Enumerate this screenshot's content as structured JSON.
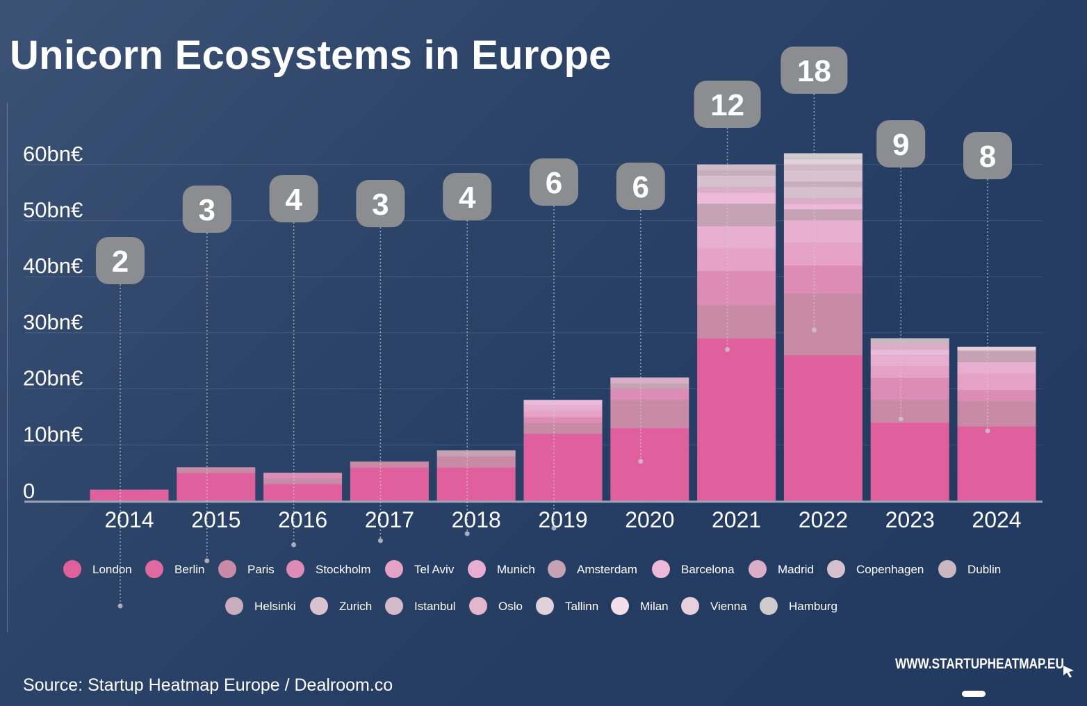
{
  "title": "Unicorn Ecosystems in Europe",
  "source": "Source: Startup Heatmap Europe / Dealroom.co",
  "brand": "WWW.STARTUPHEATMAP.EU",
  "chart_data": {
    "type": "bar",
    "stacked": true,
    "title": "Unicorn Ecosystems in Europe",
    "categories": [
      "2014",
      "2015",
      "2016",
      "2017",
      "2018",
      "2019",
      "2020",
      "2021",
      "2022",
      "2023",
      "2024"
    ],
    "ylim": [
      0,
      60
    ],
    "y_ticks": [
      {
        "value": 0,
        "label": "0"
      },
      {
        "value": 10,
        "label": "10bn€"
      },
      {
        "value": 20,
        "label": "20bn€"
      },
      {
        "value": 30,
        "label": "30bn€"
      },
      {
        "value": 40,
        "label": "40bn€"
      },
      {
        "value": 50,
        "label": "50bn€"
      },
      {
        "value": 60,
        "label": "60bn€"
      }
    ],
    "grid": true,
    "legend_position": "bottom",
    "annotations": [
      2,
      3,
      4,
      3,
      4,
      6,
      6,
      12,
      18,
      9,
      8
    ],
    "totals": [
      2,
      6,
      5,
      7,
      9,
      18,
      22,
      60,
      62,
      29,
      28
    ],
    "series": [
      {
        "name": "London",
        "color": "#e0609e",
        "values": [
          2,
          5,
          3,
          6,
          6,
          12,
          13,
          29,
          26,
          14,
          13.3
        ]
      },
      {
        "name": "Berlin",
        "color": "#df6a9f",
        "values": [
          0,
          0,
          0,
          0,
          0,
          0,
          0,
          0,
          0,
          0,
          0
        ]
      },
      {
        "name": "Paris",
        "color": "#c98aa6",
        "values": [
          0,
          1,
          1,
          1,
          2,
          2,
          5,
          6,
          11,
          4,
          4.5
        ]
      },
      {
        "name": "Stockholm",
        "color": "#dd8cb6",
        "values": [
          0,
          0,
          1,
          0,
          0,
          1,
          2,
          6,
          5,
          4,
          2
        ]
      },
      {
        "name": "Tel Aviv",
        "color": "#e6a2c5",
        "values": [
          0,
          0,
          0,
          0,
          0,
          1,
          0,
          4,
          4,
          2,
          3
        ]
      },
      {
        "name": "Munich",
        "color": "#e8aed0",
        "values": [
          0,
          0,
          0,
          0,
          0,
          1,
          0,
          4,
          4,
          2,
          2
        ]
      },
      {
        "name": "Amsterdam",
        "color": "#c6a3b4",
        "values": [
          0,
          0,
          0,
          0,
          1,
          0,
          1,
          4,
          2,
          0,
          2
        ]
      },
      {
        "name": "Barcelona",
        "color": "#ecbad8",
        "values": [
          0,
          0,
          0,
          0,
          0,
          1,
          0,
          2,
          1,
          1,
          0
        ]
      },
      {
        "name": "Madrid",
        "color": "#dbadc6",
        "values": [
          0,
          0,
          0,
          0,
          0,
          0,
          1,
          1,
          1,
          1,
          0
        ]
      },
      {
        "name": "Copenhagen",
        "color": "#d7c0cd",
        "values": [
          0,
          0,
          0,
          0,
          0,
          0,
          0,
          2,
          2,
          0,
          0
        ]
      },
      {
        "name": "Dublin",
        "color": "#c9b7c1",
        "values": [
          0,
          0,
          0,
          0,
          0,
          0,
          0,
          0,
          0,
          1,
          0
        ]
      },
      {
        "name": "Helsinki",
        "color": "#c8aebd",
        "values": [
          0,
          0,
          0,
          0,
          0,
          0,
          0,
          1,
          1,
          0,
          0
        ]
      },
      {
        "name": "Zurich",
        "color": "#d9c2d0",
        "values": [
          0,
          0,
          0,
          0,
          0,
          0,
          0,
          0,
          2,
          0,
          0
        ]
      },
      {
        "name": "Istanbul",
        "color": "#d3bac8",
        "values": [
          0,
          0,
          0,
          0,
          0,
          0,
          0,
          1,
          1,
          0,
          0
        ]
      },
      {
        "name": "Oslo",
        "color": "#e2b7cc",
        "values": [
          0,
          0,
          0,
          0,
          0,
          0,
          0,
          0,
          0,
          0,
          0
        ]
      },
      {
        "name": "Tallinn",
        "color": "#e1d1da",
        "values": [
          0,
          0,
          0,
          0,
          0,
          0,
          0,
          0,
          1,
          0,
          0
        ]
      },
      {
        "name": "Milan",
        "color": "#f1dee8",
        "values": [
          0,
          0,
          0,
          0,
          0,
          0,
          0,
          0,
          0,
          0,
          0
        ]
      },
      {
        "name": "Vienna",
        "color": "#e7cfdc",
        "values": [
          0,
          0,
          0,
          0,
          0,
          0,
          0,
          0,
          0,
          0,
          0.7
        ]
      },
      {
        "name": "Hamburg",
        "color": "#cfcbcd",
        "values": [
          0,
          0,
          0,
          0,
          0,
          0,
          0,
          0,
          1,
          0,
          0
        ]
      }
    ]
  }
}
